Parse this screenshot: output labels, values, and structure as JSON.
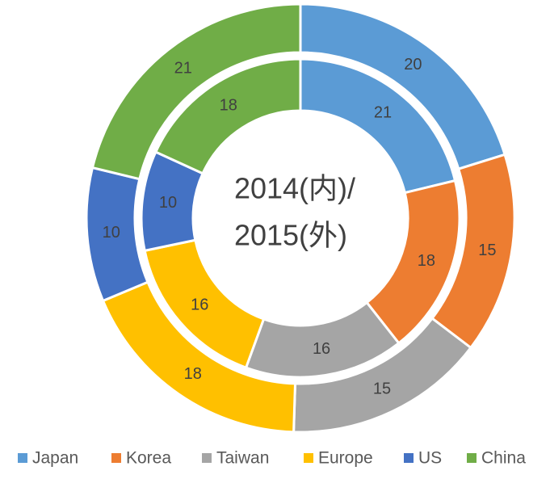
{
  "chart_data": {
    "type": "doughnut",
    "center_text": [
      "2014(内)/",
      "2015(外)"
    ],
    "categories": [
      "Japan",
      "Korea",
      "Taiwan",
      "Europe",
      "US",
      "China"
    ],
    "colors": [
      "#5b9bd5",
      "#ed7d31",
      "#a5a5a5",
      "#ffc000",
      "#4472c4",
      "#70ad47"
    ],
    "series": [
      {
        "values": [
          21,
          18,
          16,
          16,
          10,
          18
        ]
      },
      {
        "values": [
          20,
          15,
          15,
          18,
          10,
          21
        ]
      }
    ],
    "legend": "bottom"
  }
}
